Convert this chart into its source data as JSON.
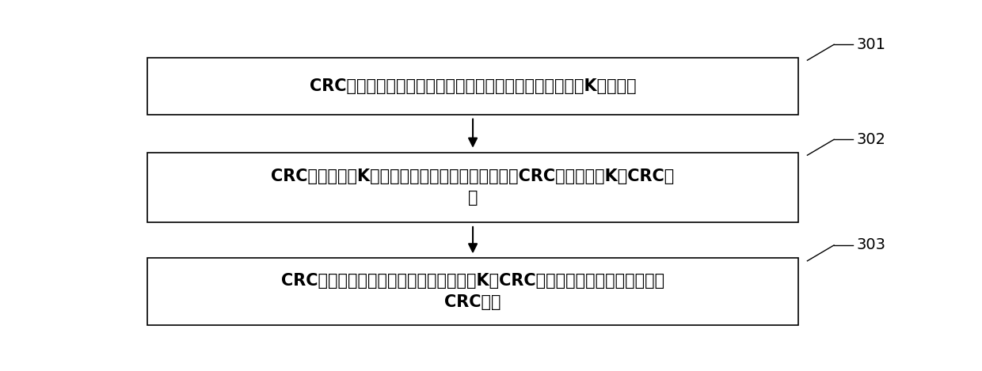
{
  "background_color": "#ffffff",
  "box1_lines": [
    "CRC实现装置按照从低位到高位的顺序将待校验数据均分为K段子数据"
  ],
  "box2_lines": [
    "CRC实现装置对K段子数据中每一段子数据分别进行CRC计算，得到K个CRC结",
    "果"
  ],
  "box3_lines": [
    "CRC实现装置按照从高位到低位的顺序对K个CRC结果进行逆向修正，得到最终",
    "CRC结果"
  ],
  "ref_labels": [
    "301",
    "302",
    "303"
  ],
  "font_size": 15,
  "ref_font_size": 14,
  "box_edge_color": "#000000",
  "arrow_color": "#000000",
  "text_color": "#000000"
}
